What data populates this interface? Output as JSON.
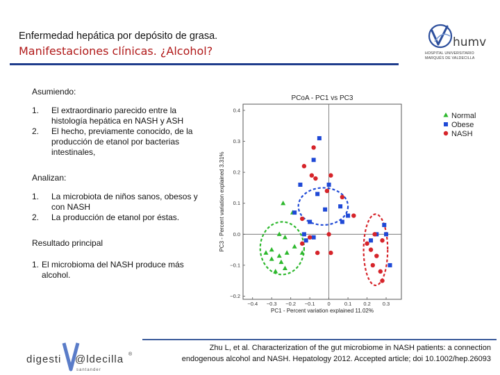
{
  "header": {
    "line1": "Enfermedad hepática por depósito de grasa.",
    "line2": "Manifestaciones clínicas. ¿Alcohol?"
  },
  "logo": {
    "name": "humv",
    "sub1": "HOSPITAL UNIVERSITARIO",
    "sub2": "MARQUÉS DE VALDECILLA"
  },
  "body": {
    "assuming_label": "Asumiendo:",
    "assuming_items": [
      {
        "num": "1.",
        "text": "El extraordinario parecido  entre la histología hepática en NASH y ASH"
      },
      {
        "num": "2.",
        "text": "El hecho, previamente conocido, de la producción de etanol por bacterias intestinales,"
      }
    ],
    "analyze_label": "Analizan:",
    "analyze_items": [
      {
        "num": "1.",
        "text": "La microbiota de niños sanos, obesos y con NASH"
      },
      {
        "num": "2.",
        "text": "La producción de etanol por éstas."
      }
    ],
    "result_label": "Resultado principal",
    "result_num": "1.",
    "result_text": "El microbioma del NASH produce más alcohol."
  },
  "footer": {
    "citation_line1": "Zhu L, et al. Characterization of the gut microbiome in NASH patients: a connection",
    "citation_line2": "endogenous alcohol and NASH. Hepatology 2012. Accepted article; doi 10.1002/hep.26093",
    "logo_text_left": "digesti",
    "logo_text_right": "@ldecilla",
    "logo_sub": "santander",
    "logo_mark": "®"
  },
  "colors": {
    "title_red": "#b01818",
    "rule_blue": "#1e3c8c",
    "normal": "#2db82d",
    "obese": "#1f49d6",
    "nash": "#d6242a"
  },
  "chart_data": {
    "type": "scatter",
    "title": "PCoA - PC1 vs PC3",
    "xlabel": "PC1 - Percent variation explained 11.02%",
    "ylabel": "PC3 - Percent variation explained 3.31%",
    "xlim": [
      -0.45,
      0.38
    ],
    "ylim": [
      -0.21,
      0.42
    ],
    "xticks": [
      -0.4,
      -0.3,
      -0.2,
      -0.1,
      0.0,
      0.1,
      0.2,
      0.3
    ],
    "xtick_labels": [
      "−0.4",
      "−0.3",
      "−0.2",
      "−0.1",
      "0",
      "0.1",
      "0.2",
      "0.3"
    ],
    "yticks": [
      -0.2,
      -0.1,
      0.0,
      0.1,
      0.2,
      0.3,
      0.4
    ],
    "ytick_labels": [
      "−0.2",
      "−0.1",
      "0.0",
      "0.1",
      "0.2",
      "0.3",
      "0.4"
    ],
    "legend": [
      "Normal",
      "Obese",
      "NASH"
    ],
    "series": [
      {
        "name": "Normal",
        "marker": "triangle",
        "points": [
          [
            -0.24,
            0.1
          ],
          [
            -0.19,
            0.07
          ],
          [
            -0.26,
            0.0
          ],
          [
            -0.23,
            -0.01
          ],
          [
            -0.18,
            -0.04
          ],
          [
            -0.3,
            -0.05
          ],
          [
            -0.26,
            -0.07
          ],
          [
            -0.22,
            -0.06
          ],
          [
            -0.3,
            -0.08
          ],
          [
            -0.25,
            -0.09
          ],
          [
            -0.23,
            -0.11
          ],
          [
            -0.28,
            -0.12
          ],
          [
            -0.14,
            -0.06
          ],
          [
            -0.33,
            -0.06
          ]
        ]
      },
      {
        "name": "Obese",
        "marker": "square",
        "points": [
          [
            -0.05,
            0.31
          ],
          [
            -0.08,
            0.24
          ],
          [
            -0.15,
            0.16
          ],
          [
            -0.06,
            0.13
          ],
          [
            0.0,
            0.16
          ],
          [
            0.06,
            0.09
          ],
          [
            -0.02,
            0.08
          ],
          [
            -0.18,
            0.07
          ],
          [
            0.1,
            0.06
          ],
          [
            -0.1,
            0.04
          ],
          [
            0.07,
            0.04
          ],
          [
            -0.13,
            0.0
          ],
          [
            -0.12,
            -0.02
          ],
          [
            0.22,
            -0.02
          ],
          [
            0.29,
            0.03
          ],
          [
            0.3,
            0.0
          ],
          [
            0.32,
            -0.1
          ],
          [
            0.25,
            0.0
          ],
          [
            -0.08,
            -0.01
          ]
        ]
      },
      {
        "name": "NASH",
        "marker": "circle",
        "points": [
          [
            -0.08,
            0.28
          ],
          [
            -0.13,
            0.22
          ],
          [
            -0.09,
            0.19
          ],
          [
            -0.07,
            0.18
          ],
          [
            0.01,
            0.19
          ],
          [
            -0.01,
            0.14
          ],
          [
            0.07,
            0.12
          ],
          [
            0.13,
            0.06
          ],
          [
            -0.14,
            0.05
          ],
          [
            0.0,
            0.0
          ],
          [
            -0.1,
            -0.01
          ],
          [
            -0.14,
            -0.03
          ],
          [
            -0.06,
            -0.06
          ],
          [
            0.01,
            -0.06
          ],
          [
            0.28,
            -0.02
          ],
          [
            0.22,
            -0.05
          ],
          [
            0.25,
            -0.07
          ],
          [
            0.23,
            -0.1
          ],
          [
            0.27,
            -0.12
          ],
          [
            0.28,
            -0.15
          ],
          [
            0.2,
            -0.03
          ],
          [
            0.24,
            0.0
          ]
        ]
      }
    ],
    "ellipses": [
      {
        "group": "Normal",
        "cx": -0.245,
        "cy": -0.045,
        "rx": 0.115,
        "ry": 0.085,
        "angle_deg": 0
      },
      {
        "group": "Obese",
        "cx": -0.03,
        "cy": 0.09,
        "rx": 0.13,
        "ry": 0.06,
        "angle_deg": 0
      },
      {
        "group": "NASH",
        "cx": 0.245,
        "cy": -0.05,
        "rx": 0.063,
        "ry": 0.115,
        "angle_deg": 0
      }
    ]
  }
}
